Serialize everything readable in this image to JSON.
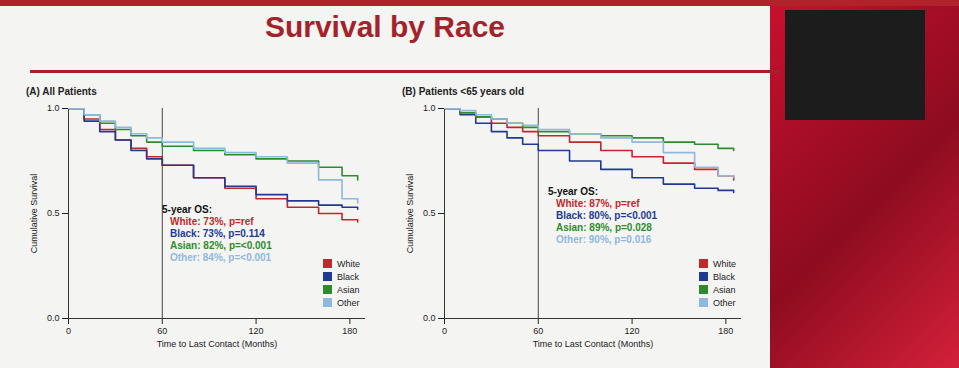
{
  "title": "Survival by Race",
  "chart_data": [
    {
      "type": "line",
      "title": "(A) All Patients",
      "xlabel": "Time to Last Contact (Months)",
      "ylabel": "Cumulative Survival",
      "x": [
        0,
        10,
        20,
        30,
        40,
        50,
        60,
        80,
        100,
        120,
        140,
        160,
        175,
        185
      ],
      "series": [
        {
          "name": "White",
          "color": "#c0282d",
          "values": [
            1.0,
            0.95,
            0.9,
            0.85,
            0.81,
            0.77,
            0.73,
            0.67,
            0.62,
            0.57,
            0.53,
            0.5,
            0.47,
            0.46
          ]
        },
        {
          "name": "Black",
          "color": "#1f3a93",
          "values": [
            1.0,
            0.94,
            0.89,
            0.85,
            0.8,
            0.76,
            0.73,
            0.67,
            0.63,
            0.59,
            0.56,
            0.54,
            0.53,
            0.52
          ]
        },
        {
          "name": "Asian",
          "color": "#2e8b2e",
          "values": [
            1.0,
            0.97,
            0.93,
            0.9,
            0.87,
            0.84,
            0.82,
            0.8,
            0.78,
            0.76,
            0.75,
            0.72,
            0.68,
            0.66
          ]
        },
        {
          "name": "Other",
          "color": "#8fb8de",
          "values": [
            1.0,
            0.97,
            0.94,
            0.91,
            0.88,
            0.86,
            0.84,
            0.81,
            0.79,
            0.77,
            0.74,
            0.66,
            0.57,
            0.55
          ]
        }
      ],
      "xlim": [
        0,
        190
      ],
      "ylim": [
        0,
        1
      ],
      "xticks": [
        0,
        60,
        120,
        180
      ],
      "yticks": [
        {
          "value": 0,
          "label": "0.0"
        },
        {
          "value": 0.5,
          "label": "0.5"
        },
        {
          "value": 1,
          "label": "1.0"
        }
      ],
      "line_style": "step",
      "legend": "lower right",
      "vline": 60,
      "annotation": {
        "heading": "5-year OS:",
        "lines": [
          "White: 73%, p=ref",
          "Black: 73%, p=0.114",
          "Asian: 82%, p=<0.001",
          "Other: 84%, p=<0.001"
        ]
      }
    },
    {
      "type": "line",
      "title": "(B) Patients <65 years old",
      "xlabel": "Time to Last Contact (Months)",
      "ylabel": "Cumulative Survival",
      "x": [
        0,
        10,
        20,
        30,
        40,
        50,
        60,
        80,
        100,
        120,
        140,
        160,
        175,
        185
      ],
      "series": [
        {
          "name": "White",
          "color": "#c0282d",
          "values": [
            1.0,
            0.98,
            0.96,
            0.93,
            0.91,
            0.89,
            0.87,
            0.84,
            0.8,
            0.77,
            0.74,
            0.71,
            0.68,
            0.66
          ]
        },
        {
          "name": "Black",
          "color": "#1f3a93",
          "values": [
            1.0,
            0.97,
            0.93,
            0.89,
            0.86,
            0.83,
            0.8,
            0.75,
            0.71,
            0.67,
            0.64,
            0.62,
            0.61,
            0.6
          ]
        },
        {
          "name": "Asian",
          "color": "#2e8b2e",
          "values": [
            1.0,
            0.98,
            0.96,
            0.95,
            0.93,
            0.91,
            0.89,
            0.88,
            0.87,
            0.86,
            0.84,
            0.83,
            0.81,
            0.8
          ]
        },
        {
          "name": "Other",
          "color": "#8fb8de",
          "values": [
            1.0,
            0.99,
            0.97,
            0.95,
            0.93,
            0.92,
            0.9,
            0.88,
            0.86,
            0.84,
            0.79,
            0.72,
            0.68,
            0.67
          ]
        }
      ],
      "xlim": [
        0,
        190
      ],
      "ylim": [
        0,
        1
      ],
      "xticks": [
        0,
        60,
        120,
        180
      ],
      "yticks": [
        {
          "value": 0,
          "label": "0.0"
        },
        {
          "value": 0.5,
          "label": "0.5"
        },
        {
          "value": 1,
          "label": "1.0"
        }
      ],
      "line_style": "step",
      "legend": "lower right",
      "vline": 60,
      "annotation": {
        "heading": "5-year OS:",
        "lines": [
          "White: 87%, p=ref",
          "Black: 80%, p=<0.001",
          "Asian: 89%, p=0.028",
          "Other: 90%, p=0.016"
        ]
      }
    }
  ]
}
